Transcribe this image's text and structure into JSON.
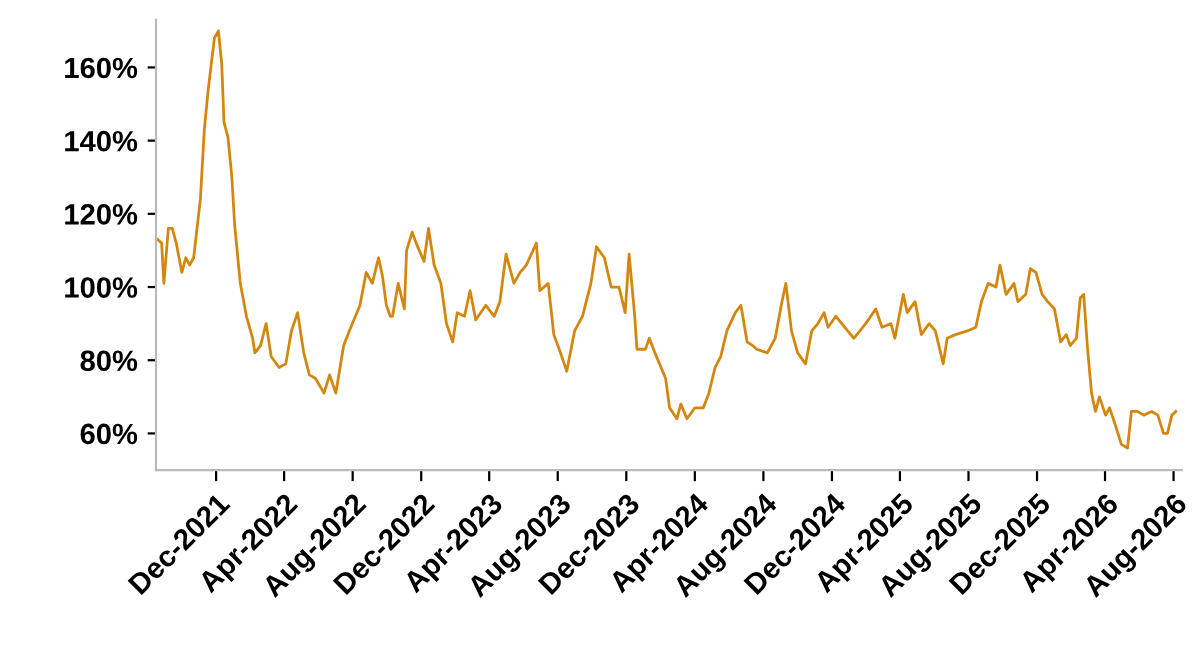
{
  "chart_data": {
    "type": "line",
    "grid": false,
    "legend": false,
    "marker": "none",
    "line_style": "solid",
    "xlim": [
      "2021-08-16",
      "2026-08-16"
    ],
    "ylim": [
      50,
      173
    ],
    "xticks": [
      {
        "value": "2021-12-01",
        "label": "Dec-2021"
      },
      {
        "value": "2022-04-01",
        "label": "Apr-2022"
      },
      {
        "value": "2022-08-01",
        "label": "Aug-2022"
      },
      {
        "value": "2022-12-01",
        "label": "Dec-2022"
      },
      {
        "value": "2023-04-01",
        "label": "Apr-2023"
      },
      {
        "value": "2023-08-01",
        "label": "Aug-2023"
      },
      {
        "value": "2023-12-01",
        "label": "Dec-2023"
      },
      {
        "value": "2024-04-01",
        "label": "Apr-2024"
      },
      {
        "value": "2024-08-01",
        "label": "Aug-2024"
      },
      {
        "value": "2024-12-01",
        "label": "Dec-2024"
      },
      {
        "value": "2025-04-01",
        "label": "Apr-2025"
      },
      {
        "value": "2025-08-01",
        "label": "Aug-2025"
      },
      {
        "value": "2025-12-01",
        "label": "Dec-2025"
      },
      {
        "value": "2026-04-01",
        "label": "Apr-2026"
      },
      {
        "value": "2026-08-01",
        "label": "Aug-2026"
      }
    ],
    "yticks": [
      {
        "value": 60,
        "label": "60%"
      },
      {
        "value": 80,
        "label": "80%"
      },
      {
        "value": 100,
        "label": "100%"
      },
      {
        "value": 120,
        "label": "120%"
      },
      {
        "value": 140,
        "label": "140%"
      },
      {
        "value": 160,
        "label": "160%"
      }
    ],
    "series": [
      {
        "color": "#d4870f",
        "x": [
          "2021-08-19",
          "2021-08-26",
          "2021-08-30",
          "2021-09-07",
          "2021-09-14",
          "2021-09-21",
          "2021-10-01",
          "2021-10-08",
          "2021-10-15",
          "2021-10-22",
          "2021-11-03",
          "2021-11-10",
          "2021-11-17",
          "2021-11-24",
          "2021-11-28",
          "2021-12-05",
          "2021-12-11",
          "2021-12-15",
          "2021-12-22",
          "2021-12-29",
          "2022-01-03",
          "2022-01-13",
          "2022-01-24",
          "2022-02-04",
          "2022-02-08",
          "2022-02-18",
          "2022-02-28",
          "2022-03-09",
          "2022-03-23",
          "2022-04-04",
          "2022-04-14",
          "2022-04-25",
          "2022-05-06",
          "2022-05-16",
          "2022-05-27",
          "2022-06-11",
          "2022-06-21",
          "2022-07-02",
          "2022-07-16",
          "2022-07-26",
          "2022-08-14",
          "2022-08-25",
          "2022-09-05",
          "2022-09-16",
          "2022-09-23",
          "2022-09-30",
          "2022-10-07",
          "2022-10-11",
          "2022-10-21",
          "2022-11-01",
          "2022-11-05",
          "2022-11-15",
          "2022-11-22",
          "2022-12-06",
          "2022-12-14",
          "2022-12-24",
          "2023-01-05",
          "2023-01-15",
          "2023-01-26",
          "2023-02-03",
          "2023-02-16",
          "2023-02-26",
          "2023-03-08",
          "2023-03-26",
          "2023-04-10",
          "2023-04-20",
          "2023-05-01",
          "2023-05-15",
          "2023-05-26",
          "2023-06-06",
          "2023-06-24",
          "2023-06-30",
          "2023-07-15",
          "2023-07-25",
          "2023-08-06",
          "2023-08-17",
          "2023-08-31",
          "2023-09-14",
          "2023-09-29",
          "2023-10-09",
          "2023-10-23",
          "2023-11-04",
          "2023-11-18",
          "2023-11-29",
          "2023-12-06",
          "2023-12-16",
          "2023-12-20",
          "2024-01-04",
          "2024-01-11",
          "2024-01-21",
          "2024-02-09",
          "2024-02-16",
          "2024-02-29",
          "2024-03-07",
          "2024-03-18",
          "2024-04-01",
          "2024-04-16",
          "2024-04-26",
          "2024-05-07",
          "2024-05-17",
          "2024-05-28",
          "2024-06-12",
          "2024-06-22",
          "2024-07-03",
          "2024-07-13",
          "2024-07-20",
          "2024-08-08",
          "2024-08-22",
          "2024-09-03",
          "2024-09-10",
          "2024-09-20",
          "2024-10-01",
          "2024-10-15",
          "2024-10-26",
          "2024-11-06",
          "2024-11-17",
          "2024-11-24",
          "2024-12-08",
          "2024-12-29",
          "2025-01-09",
          "2025-01-30",
          "2025-02-17",
          "2025-02-28",
          "2025-03-16",
          "2025-03-23",
          "2025-04-07",
          "2025-04-14",
          "2025-04-28",
          "2025-05-09",
          "2025-05-23",
          "2025-06-03",
          "2025-06-17",
          "2025-06-24",
          "2025-07-09",
          "2025-07-30",
          "2025-08-14",
          "2025-08-24",
          "2025-09-05",
          "2025-09-19",
          "2025-09-26",
          "2025-10-07",
          "2025-10-21",
          "2025-10-28",
          "2025-11-11",
          "2025-11-19",
          "2025-11-29",
          "2025-12-10",
          "2025-12-20",
          "2026-01-01",
          "2026-01-12",
          "2026-01-22",
          "2026-01-29",
          "2026-02-09",
          "2026-02-16",
          "2026-02-22",
          "2026-03-01",
          "2026-03-08",
          "2026-03-15",
          "2026-03-22",
          "2026-04-02",
          "2026-04-09",
          "2026-04-20",
          "2026-04-30",
          "2026-05-11",
          "2026-05-18",
          "2026-05-29",
          "2026-06-09",
          "2026-06-23",
          "2026-07-04",
          "2026-07-14",
          "2026-07-21",
          "2026-07-29",
          "2026-08-05"
        ],
        "values": [
          113,
          112,
          101,
          116,
          116,
          112,
          104,
          108,
          106,
          108,
          124,
          143,
          154,
          163,
          168,
          170,
          161,
          145,
          141,
          130,
          117,
          101,
          92,
          86,
          82,
          84,
          90,
          81,
          78,
          79,
          88,
          93,
          82,
          76,
          75,
          71,
          76,
          71,
          84,
          88,
          95,
          104,
          101,
          108,
          103,
          95,
          92,
          92,
          101,
          94,
          110,
          115,
          112,
          107,
          116,
          106,
          101,
          90,
          85,
          93,
          92,
          99,
          91,
          95,
          92,
          96,
          109,
          101,
          104,
          106,
          112,
          99,
          101,
          87,
          82,
          77,
          88,
          92,
          101,
          111,
          108,
          100,
          100,
          93,
          109,
          92,
          83,
          83,
          86,
          82,
          75,
          67,
          64,
          68,
          64,
          67,
          67,
          71,
          78,
          81,
          88,
          93,
          95,
          85,
          84,
          83,
          82,
          86,
          96,
          101,
          88,
          82,
          79,
          88,
          90,
          93,
          89,
          92,
          88,
          86,
          90,
          94,
          89,
          90,
          86,
          98,
          93,
          96,
          87,
          90,
          88,
          79,
          86,
          87,
          88,
          89,
          96,
          101,
          100,
          106,
          98,
          101,
          96,
          98,
          105,
          104,
          98,
          96,
          94,
          85,
          87,
          84,
          86,
          97,
          98,
          83,
          71,
          66,
          70,
          65,
          67,
          62,
          57,
          56,
          66,
          66,
          65,
          66,
          65,
          60,
          60,
          65,
          66
        ]
      }
    ]
  }
}
